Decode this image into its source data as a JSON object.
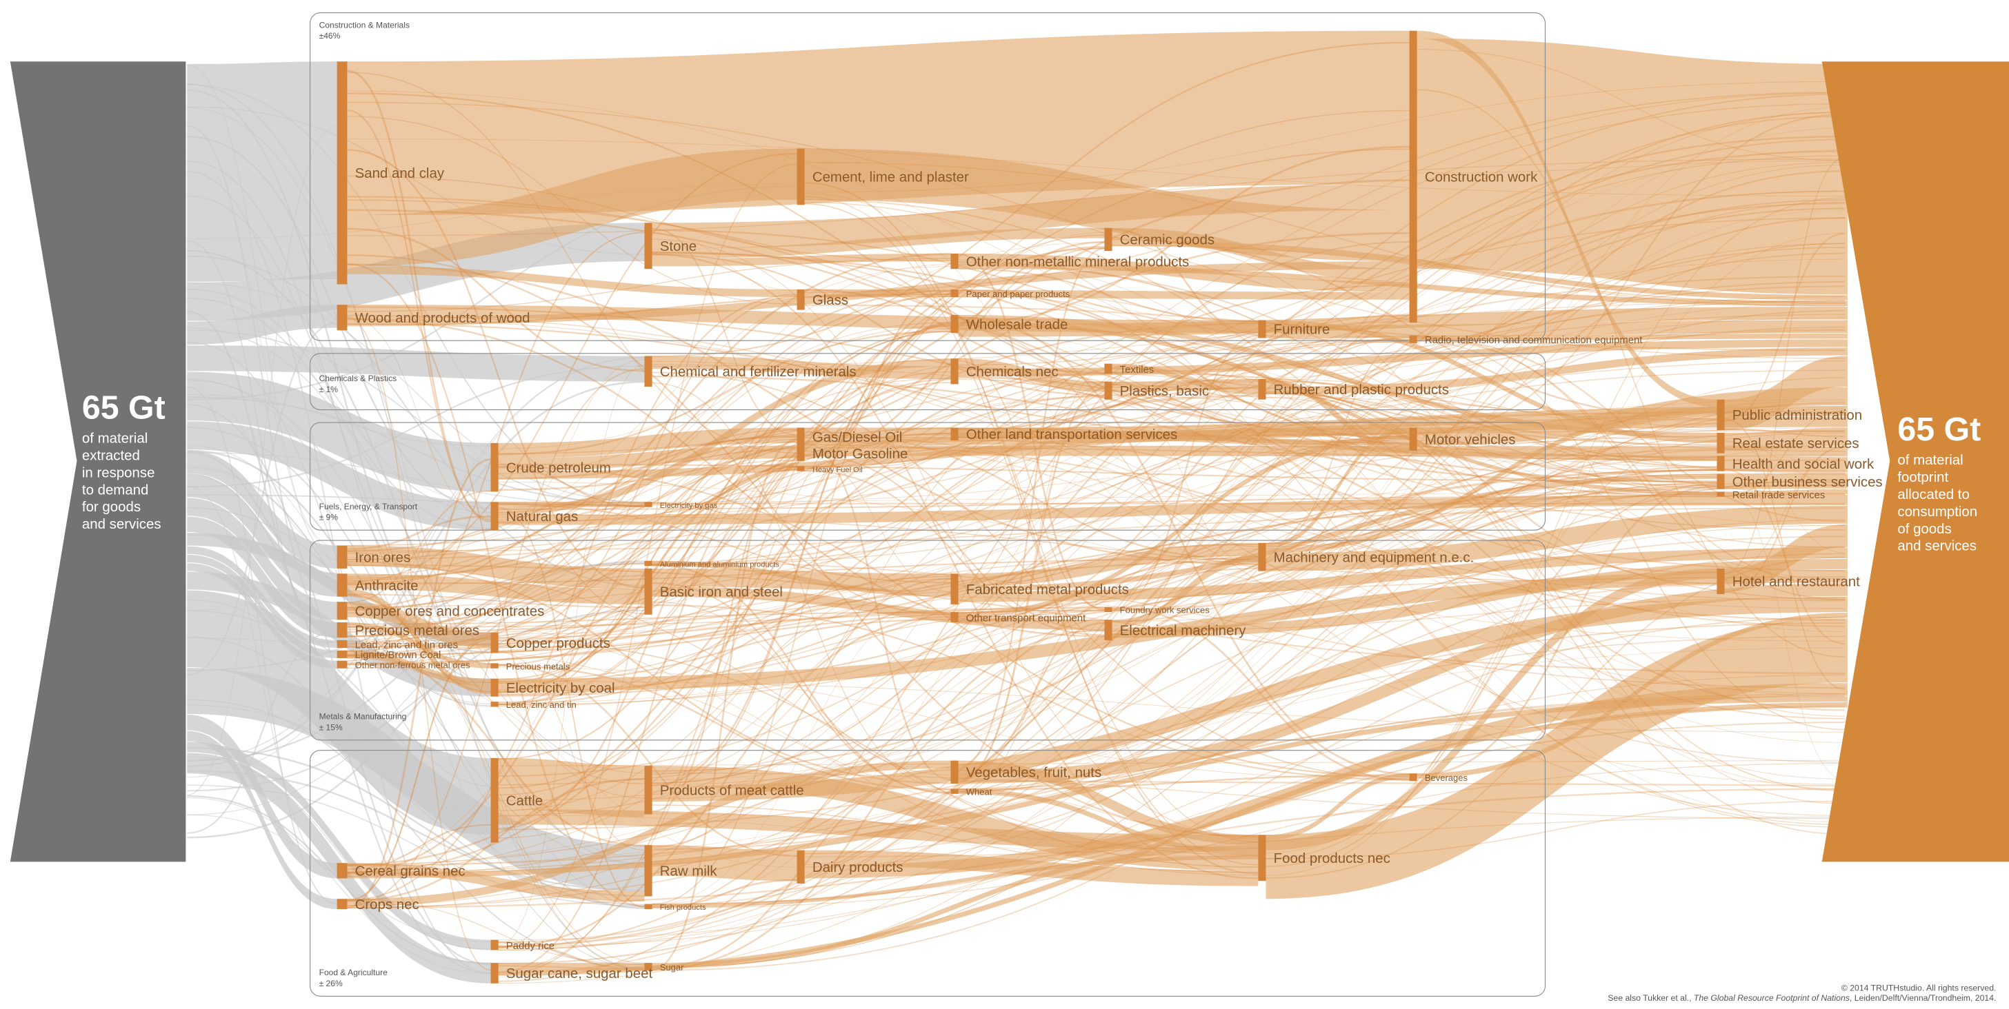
{
  "left_block": {
    "amount": "65 Gt",
    "lines": [
      "of material",
      "extracted",
      "in response",
      "to demand",
      "for goods",
      "and services"
    ]
  },
  "right_block": {
    "amount": "65 Gt",
    "lines": [
      "of material",
      "footprint",
      "allocated to",
      "consumption",
      "of goods",
      "and services"
    ]
  },
  "groups": [
    {
      "name": "Construction & Materials",
      "share": "±46%"
    },
    {
      "name": "Chemicals & Plastics",
      "share": "± 1%"
    },
    {
      "name": "Fuels, Energy, & Transport",
      "share": "± 9%"
    },
    {
      "name": "Metals & Manufacturing",
      "share": "± 15%"
    },
    {
      "name": "Food & Agriculture",
      "share": "± 26%"
    }
  ],
  "nodes": [
    "Sand and clay",
    "Wood and products of wood",
    "Iron ores",
    "Anthracite",
    "Copper ores and concentrates",
    "Precious metal ores",
    "Lead, zinc and tin ores",
    "Lignite/Brown Coal",
    "Other non-ferrous metal ores",
    "Cereal grains nec",
    "Crops nec",
    "Crude petroleum",
    "Natural gas",
    "Copper products",
    "Precious metals",
    "Electricity by coal",
    "Lead, zinc and tin",
    "Cattle",
    "Paddy rice",
    "Sugar cane, sugar beet",
    "Stone",
    "Chemical and fertilizer minerals",
    "Electricity by gas",
    "Aluminium and aluminium products",
    "Basic iron and steel",
    "Products of meat cattle",
    "Raw milk",
    "Fish products",
    "Sugar",
    "Cement, lime and plaster",
    "Glass",
    "Gas/Diesel Oil",
    "Motor Gasoline",
    "Heavy Fuel Oil",
    "Dairy products",
    "Other non-metallic mineral products",
    "Paper and paper products",
    "Wholesale trade",
    "Chemicals nec",
    "Other land transportation services",
    "Fabricated metal products",
    "Other transport equipment",
    "Vegetables, fruit, nuts",
    "Wheat",
    "Ceramic goods",
    "Textiles",
    "Plastics, basic",
    "Foundry work services",
    "Electrical machinery",
    "Furniture",
    "Rubber and plastic products",
    "Machinery and equipment n.e.c.",
    "Food products nec",
    "Construction work",
    "Radio, television and communication equipment",
    "Motor vehicles",
    "Beverages",
    "Public administration",
    "Real estate services",
    "Health and social work",
    "Other business services",
    "Retail trade services",
    "Hotel and restaurant"
  ],
  "footer": {
    "copyright": "© 2014 TRUTHstudio. All rights reserved.",
    "reference": {
      "prefix": "See also Tukker et al., ",
      "title": "The Global Resource Footprint of Nations",
      "suffix": ", Leiden/Delft/Vienna/Trondheim, 2014."
    }
  }
}
